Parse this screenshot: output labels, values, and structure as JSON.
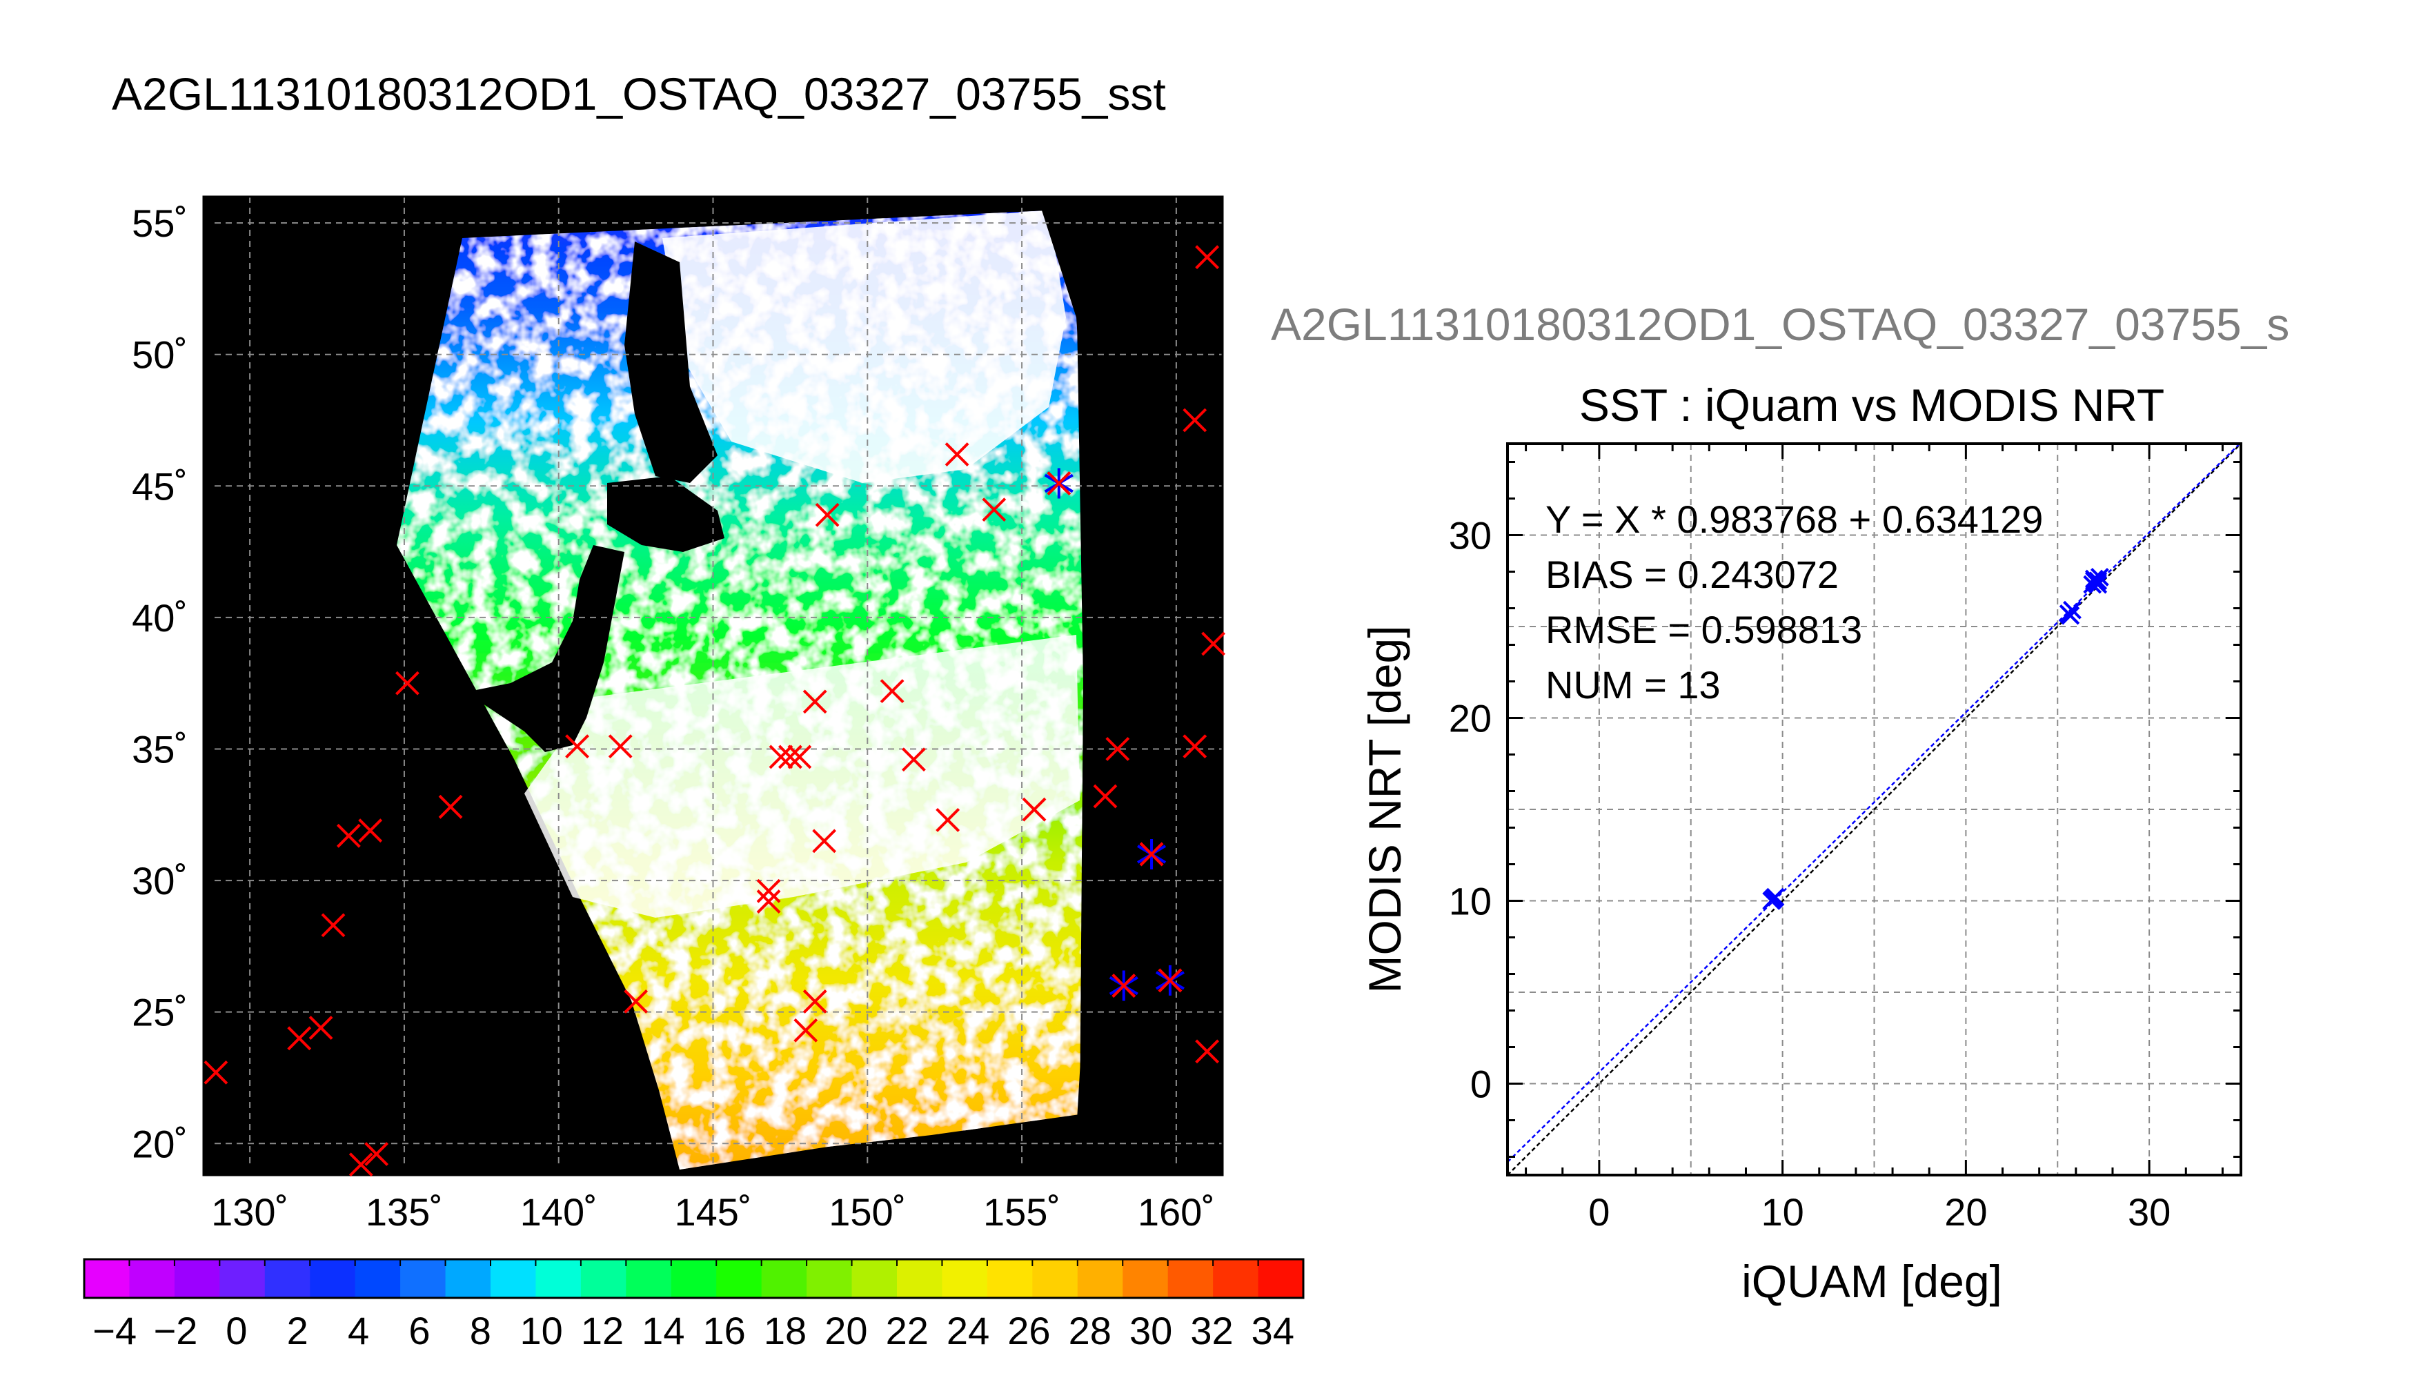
{
  "figure": {
    "main_title": "A2GL11310180312OD1_OSTAQ_03327_03755_sst",
    "side_title": "A2GL11310180312OD1_OSTAQ_03327_03755_s"
  },
  "colors": {
    "background": "#ffffff",
    "map_background": "#000000",
    "cloud_mask": "#ffffff",
    "marker": "#ff0000",
    "match_marker": "#0000ff",
    "grid": "#8c8c8c"
  },
  "map": {
    "lon_range": [
      128.5,
      161.5
    ],
    "lat_range": [
      18.8,
      56
    ],
    "lon_ticks": [
      "130˚",
      "135˚",
      "140˚",
      "145˚",
      "150˚",
      "155˚",
      "160˚"
    ],
    "lat_ticks": [
      "55˚",
      "50˚",
      "45˚",
      "40˚",
      "35˚",
      "30˚",
      "25˚",
      "20˚"
    ],
    "buoy_markers": [
      [
        161,
        53.7
      ],
      [
        160.6,
        47.5
      ],
      [
        161.2,
        39
      ],
      [
        160.6,
        35.1
      ],
      [
        161,
        23.5
      ],
      [
        159.2,
        31
      ],
      [
        158.3,
        26
      ],
      [
        159.8,
        26.2
      ],
      [
        158.1,
        35
      ],
      [
        157.7,
        33.2
      ],
      [
        155.4,
        32.7
      ],
      [
        156.2,
        45.1
      ],
      [
        154.1,
        44.1
      ],
      [
        152.9,
        46.2
      ],
      [
        148.7,
        43.9
      ],
      [
        148.3,
        36.8
      ],
      [
        151.5,
        34.6
      ],
      [
        150.8,
        37.2
      ],
      [
        152.6,
        32.3
      ],
      [
        148.6,
        31.5
      ],
      [
        147.2,
        34.7
      ],
      [
        147.5,
        34.7
      ],
      [
        147.8,
        34.7
      ],
      [
        146.8,
        29.6
      ],
      [
        146.8,
        29.2
      ],
      [
        148.3,
        25.4
      ],
      [
        148,
        24.3
      ],
      [
        142.5,
        25.4
      ],
      [
        142,
        35.1
      ],
      [
        140.6,
        35.1
      ],
      [
        135.1,
        37.5
      ],
      [
        136.5,
        32.8
      ],
      [
        133.9,
        31.9
      ],
      [
        133.2,
        31.7
      ],
      [
        132.7,
        28.3
      ],
      [
        131.6,
        24
      ],
      [
        132.3,
        24.4
      ],
      [
        133.6,
        19.2
      ],
      [
        134.1,
        19.6
      ],
      [
        128.9,
        22.7
      ]
    ],
    "match_markers": [
      [
        159.2,
        31
      ],
      [
        158.3,
        26
      ],
      [
        159.8,
        26.2
      ],
      [
        156.2,
        45.1
      ]
    ]
  },
  "colorbar": {
    "tick_labels": [
      "−4",
      "−2",
      "0",
      "2",
      "4",
      "6",
      "8",
      "10",
      "12",
      "14",
      "16",
      "18",
      "20",
      "22",
      "24",
      "26",
      "28",
      "30",
      "32",
      "34"
    ],
    "range": [
      -5,
      35
    ],
    "colors": [
      "#e600ff",
      "#c000ff",
      "#9c00ff",
      "#6e1fff",
      "#3030ff",
      "#0c30ff",
      "#0048ff",
      "#1070ff",
      "#00a8ff",
      "#00e0ff",
      "#00ffd8",
      "#00ff9a",
      "#00ff5a",
      "#00ff28",
      "#1aff00",
      "#50f200",
      "#80f000",
      "#b0f000",
      "#dcf000",
      "#f2f000",
      "#ffe200",
      "#ffd000",
      "#ffb000",
      "#ff8400",
      "#ff5a00",
      "#ff3200",
      "#ff0f00"
    ]
  },
  "chart_data": {
    "type": "scatter",
    "title": "SST : iQuam vs MODIS NRT",
    "xlabel": "iQUAM [deg]",
    "ylabel": "MODIS NRT [deg]",
    "xlim": [
      -5,
      35
    ],
    "ylim": [
      -5,
      35
    ],
    "x_tick_labels": [
      "0",
      "10",
      "20",
      "30"
    ],
    "y_tick_labels": [
      "0",
      "10",
      "20",
      "30"
    ],
    "grid": true,
    "annotations": [
      "Y = X * 0.983768 + 0.634129",
      "BIAS = 0.243072",
      "RMSE = 0.598813",
      "NUM = 13"
    ],
    "fit": {
      "slope": 0.983768,
      "intercept": 0.634129
    },
    "points": [
      {
        "x": 9.4,
        "y": 10.0
      },
      {
        "x": 9.5,
        "y": 10.1
      },
      {
        "x": 9.6,
        "y": 10.2
      },
      {
        "x": 25.6,
        "y": 25.7
      },
      {
        "x": 25.7,
        "y": 25.6
      },
      {
        "x": 25.8,
        "y": 25.9
      },
      {
        "x": 27.0,
        "y": 27.6
      },
      {
        "x": 27.1,
        "y": 27.4
      },
      {
        "x": 27.2,
        "y": 27.3
      },
      {
        "x": 27.0,
        "y": 27.5
      },
      {
        "x": 27.3,
        "y": 27.7
      },
      {
        "x": 26.9,
        "y": 27.3
      },
      {
        "x": 27.2,
        "y": 27.5
      }
    ]
  }
}
